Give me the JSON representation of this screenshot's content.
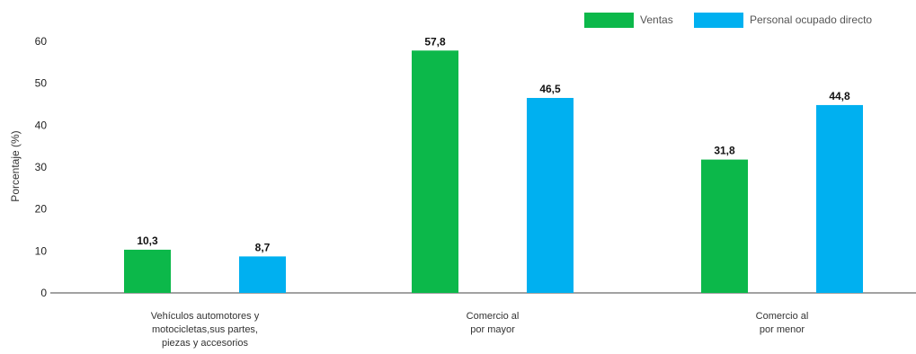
{
  "chart_data": {
    "type": "bar",
    "categories": [
      [
        "Vehículos automotores y",
        "motocicletas,sus partes,",
        "piezas y accesorios"
      ],
      [
        "Comercio al",
        "por mayor"
      ],
      [
        "Comercio al",
        "por menor"
      ]
    ],
    "series": [
      {
        "name": "Ventas",
        "color": "#0cb84a",
        "values": [
          10.3,
          57.8,
          31.8
        ],
        "labels": [
          "10,3",
          "57,8",
          "31,8"
        ]
      },
      {
        "name": "Personal ocupado directo",
        "color": "#00b0f0",
        "values": [
          8.7,
          46.5,
          44.8
        ],
        "labels": [
          "8,7",
          "46,5",
          "44,8"
        ]
      }
    ],
    "ylabel": "Porcentaje (%)",
    "xlabel": "",
    "ylim": [
      0,
      60
    ],
    "yticks": [
      0,
      10,
      20,
      30,
      40,
      50,
      60
    ],
    "grid": false,
    "legend_position": "top-right"
  }
}
